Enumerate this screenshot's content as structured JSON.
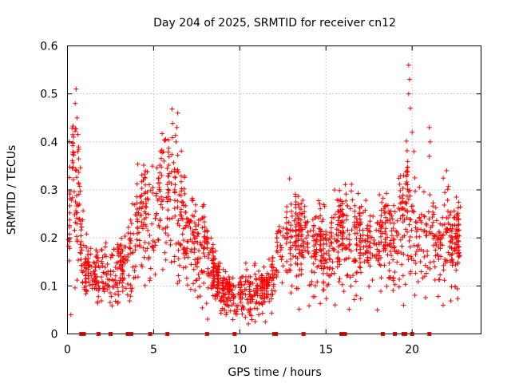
{
  "chart_data": {
    "type": "scatter",
    "title": "Day 204 of 2025, SRMTID for receiver cn12",
    "xlabel": "GPS time / hours",
    "ylabel": "SRMTID / TECUs",
    "xlim": [
      0,
      24
    ],
    "ylim": [
      0,
      0.6
    ],
    "xticks": [
      0,
      5,
      10,
      15,
      20
    ],
    "yticks": [
      0,
      0.1,
      0.2,
      0.3,
      0.4,
      0.5,
      0.6
    ],
    "xtick_labels": [
      "0",
      "5",
      "10",
      "15",
      "20"
    ],
    "ytick_labels": [
      "0",
      "0.1",
      "0.2",
      "0.3",
      "0.4",
      "0.5",
      "0.6"
    ],
    "grid": true,
    "marker": "+",
    "color": "#ff0000",
    "profile": [
      {
        "x": 0.0,
        "y": 0.2
      },
      {
        "x": 0.3,
        "y": 0.3
      },
      {
        "x": 0.6,
        "y": 0.27
      },
      {
        "x": 1.0,
        "y": 0.13
      },
      {
        "x": 2.0,
        "y": 0.12
      },
      {
        "x": 3.0,
        "y": 0.13
      },
      {
        "x": 3.5,
        "y": 0.16
      },
      {
        "x": 4.0,
        "y": 0.21
      },
      {
        "x": 4.5,
        "y": 0.25
      },
      {
        "x": 5.0,
        "y": 0.22
      },
      {
        "x": 5.5,
        "y": 0.3
      },
      {
        "x": 6.0,
        "y": 0.29
      },
      {
        "x": 6.5,
        "y": 0.25
      },
      {
        "x": 7.0,
        "y": 0.2
      },
      {
        "x": 8.0,
        "y": 0.17
      },
      {
        "x": 9.0,
        "y": 0.09
      },
      {
        "x": 10.0,
        "y": 0.08
      },
      {
        "x": 11.0,
        "y": 0.09
      },
      {
        "x": 11.8,
        "y": 0.1
      },
      {
        "x": 12.3,
        "y": 0.17
      },
      {
        "x": 13.0,
        "y": 0.2
      },
      {
        "x": 14.0,
        "y": 0.18
      },
      {
        "x": 15.0,
        "y": 0.17
      },
      {
        "x": 16.0,
        "y": 0.2
      },
      {
        "x": 17.0,
        "y": 0.19
      },
      {
        "x": 18.0,
        "y": 0.18
      },
      {
        "x": 19.0,
        "y": 0.2
      },
      {
        "x": 19.7,
        "y": 0.25
      },
      {
        "x": 20.0,
        "y": 0.22
      },
      {
        "x": 21.0,
        "y": 0.2
      },
      {
        "x": 22.0,
        "y": 0.2
      },
      {
        "x": 22.8,
        "y": 0.19
      }
    ],
    "spikes": [
      {
        "x": 0.5,
        "y": 0.51
      },
      {
        "x": 0.45,
        "y": 0.48
      },
      {
        "x": 0.55,
        "y": 0.45
      },
      {
        "x": 0.6,
        "y": 0.38
      },
      {
        "x": 0.1,
        "y": 0.4
      },
      {
        "x": 5.4,
        "y": 0.38
      },
      {
        "x": 5.6,
        "y": 0.36
      },
      {
        "x": 6.4,
        "y": 0.46
      },
      {
        "x": 6.35,
        "y": 0.43
      },
      {
        "x": 6.3,
        "y": 0.4
      },
      {
        "x": 4.4,
        "y": 0.32
      },
      {
        "x": 13.4,
        "y": 0.27
      },
      {
        "x": 15.5,
        "y": 0.3
      },
      {
        "x": 18.1,
        "y": 0.29
      },
      {
        "x": 19.5,
        "y": 0.33
      },
      {
        "x": 19.8,
        "y": 0.56
      },
      {
        "x": 19.85,
        "y": 0.53
      },
      {
        "x": 19.8,
        "y": 0.5
      },
      {
        "x": 19.9,
        "y": 0.47
      },
      {
        "x": 20.0,
        "y": 0.42
      },
      {
        "x": 20.1,
        "y": 0.38
      },
      {
        "x": 21.0,
        "y": 0.43
      },
      {
        "x": 21.05,
        "y": 0.4
      },
      {
        "x": 21.0,
        "y": 0.37
      },
      {
        "x": 22.0,
        "y": 0.34
      },
      {
        "x": 9.2,
        "y": 0.04
      },
      {
        "x": 9.6,
        "y": 0.03
      },
      {
        "x": 10.7,
        "y": 0.03
      },
      {
        "x": 11.1,
        "y": 0.04
      },
      {
        "x": 0.2,
        "y": 0.04
      },
      {
        "x": 19.5,
        "y": 0.06
      },
      {
        "x": 21.8,
        "y": 0.06
      }
    ],
    "markers_at_zero": [
      0.8,
      0.95,
      1.8,
      2.5,
      3.5,
      3.7,
      4.8,
      5.8,
      8.1,
      9.7,
      12.0,
      12.1,
      13.7,
      15.9,
      16.1,
      18.3,
      19.0,
      19.5,
      19.6,
      20.0,
      21.0
    ]
  }
}
